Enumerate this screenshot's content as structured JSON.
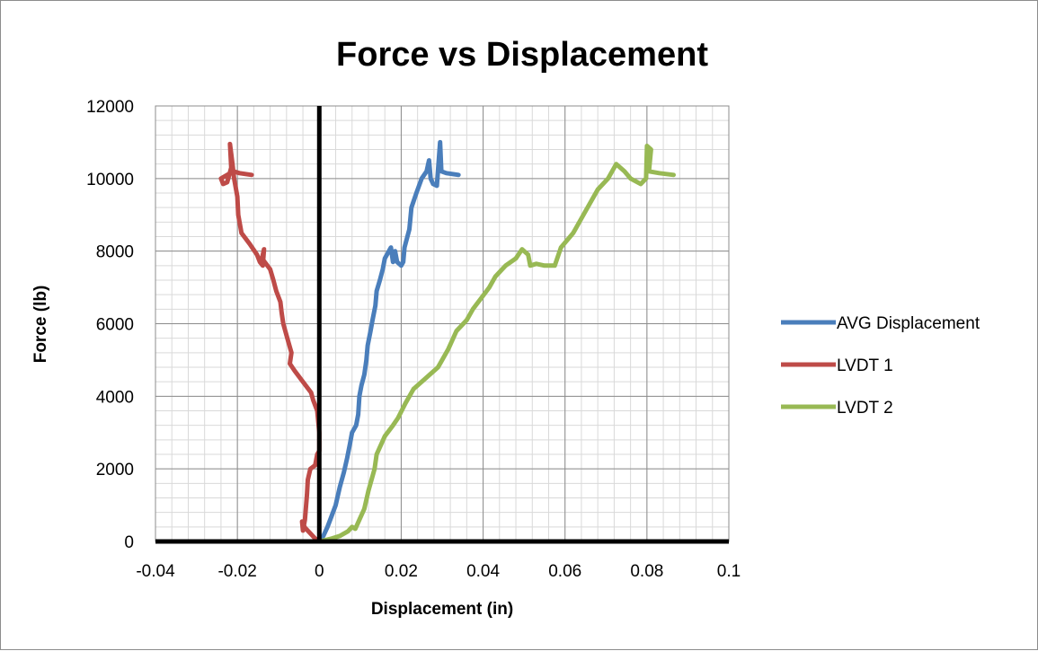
{
  "chart_data": {
    "type": "scatter",
    "title": "Force vs Displacement",
    "xlabel": "Displacement (in)",
    "ylabel": "Force (lb)",
    "xlim": [
      -0.04,
      0.1
    ],
    "ylim": [
      0,
      12000
    ],
    "x_major_ticks": [
      -0.04,
      -0.02,
      0,
      0.02,
      0.04,
      0.06,
      0.08,
      0.1
    ],
    "x_tick_labels": [
      "-0.04",
      "-0.02",
      "0",
      "0.02",
      "0.04",
      "0.06",
      "0.08",
      "0.1"
    ],
    "y_major_ticks": [
      0,
      2000,
      4000,
      6000,
      8000,
      10000,
      12000
    ],
    "y_tick_labels": [
      "0",
      "2000",
      "4000",
      "6000",
      "8000",
      "10000",
      "12000"
    ],
    "x_minor_step": 0.004,
    "y_minor_step": 400,
    "grid": "major and minor",
    "legend_position": "right",
    "series": [
      {
        "name": "AVG Displacement",
        "color": "#4a7ebb",
        "points": [
          [
            0,
            0
          ],
          [
            0.001,
            150
          ],
          [
            0.002,
            400
          ],
          [
            0.003,
            700
          ],
          [
            0.004,
            1000
          ],
          [
            0.005,
            1500
          ],
          [
            0.006,
            1900
          ],
          [
            0.0068,
            2300
          ],
          [
            0.0075,
            2700
          ],
          [
            0.008,
            3000
          ],
          [
            0.009,
            3200
          ],
          [
            0.0095,
            3500
          ],
          [
            0.0098,
            4000
          ],
          [
            0.0103,
            4300
          ],
          [
            0.011,
            4600
          ],
          [
            0.0115,
            5000
          ],
          [
            0.0118,
            5400
          ],
          [
            0.0125,
            5800
          ],
          [
            0.013,
            6100
          ],
          [
            0.0137,
            6500
          ],
          [
            0.014,
            6900
          ],
          [
            0.0148,
            7200
          ],
          [
            0.0155,
            7500
          ],
          [
            0.016,
            7800
          ],
          [
            0.0175,
            8100
          ],
          [
            0.018,
            7700
          ],
          [
            0.0185,
            8000
          ],
          [
            0.019,
            7700
          ],
          [
            0.02,
            7600
          ],
          [
            0.0205,
            7700
          ],
          [
            0.0208,
            8100
          ],
          [
            0.022,
            8600
          ],
          [
            0.0225,
            9200
          ],
          [
            0.0237,
            9600
          ],
          [
            0.025,
            10000
          ],
          [
            0.0262,
            10200
          ],
          [
            0.0268,
            10500
          ],
          [
            0.0272,
            10000
          ],
          [
            0.0278,
            9850
          ],
          [
            0.0287,
            9800
          ],
          [
            0.0295,
            11000
          ],
          [
            0.0298,
            10200
          ],
          [
            0.031,
            10150
          ],
          [
            0.034,
            10100
          ]
        ]
      },
      {
        "name": "LVDT 1",
        "color": "#be4b48",
        "points": [
          [
            0,
            0
          ],
          [
            -0.001,
            80
          ],
          [
            -0.002,
            200
          ],
          [
            -0.0035,
            380
          ],
          [
            -0.0042,
            550
          ],
          [
            -0.004,
            300
          ],
          [
            -0.0035,
            600
          ],
          [
            -0.003,
            1300
          ],
          [
            -0.0028,
            1700
          ],
          [
            -0.0022,
            2000
          ],
          [
            -0.001,
            2100
          ],
          [
            -0.0005,
            2400
          ],
          [
            0,
            2500
          ],
          [
            0,
            3000
          ],
          [
            -0.0005,
            3600
          ],
          [
            -0.0015,
            3900
          ],
          [
            -0.002,
            4100
          ],
          [
            -0.004,
            4400
          ],
          [
            -0.006,
            4700
          ],
          [
            -0.0072,
            4900
          ],
          [
            -0.0068,
            5200
          ],
          [
            -0.0078,
            5600
          ],
          [
            -0.0088,
            6000
          ],
          [
            -0.0092,
            6300
          ],
          [
            -0.0095,
            6600
          ],
          [
            -0.0105,
            6900
          ],
          [
            -0.0112,
            7200
          ],
          [
            -0.012,
            7500
          ],
          [
            -0.014,
            7800
          ],
          [
            -0.0135,
            8050
          ],
          [
            -0.0138,
            7600
          ],
          [
            -0.0145,
            7700
          ],
          [
            -0.0152,
            7900
          ],
          [
            -0.017,
            8200
          ],
          [
            -0.019,
            8500
          ],
          [
            -0.0198,
            9000
          ],
          [
            -0.02,
            9500
          ],
          [
            -0.0208,
            10000
          ],
          [
            -0.0212,
            10400
          ],
          [
            -0.0218,
            10950
          ],
          [
            -0.0215,
            10300
          ],
          [
            -0.0225,
            9900
          ],
          [
            -0.0235,
            9850
          ],
          [
            -0.024,
            10000
          ],
          [
            -0.021,
            10200
          ],
          [
            -0.0195,
            10150
          ],
          [
            -0.0165,
            10100
          ]
        ]
      },
      {
        "name": "LVDT 2",
        "color": "#98b954",
        "points": [
          [
            0,
            0
          ],
          [
            0.003,
            80
          ],
          [
            0.005,
            150
          ],
          [
            0.007,
            280
          ],
          [
            0.008,
            400
          ],
          [
            0.0088,
            350
          ],
          [
            0.0098,
            600
          ],
          [
            0.011,
            900
          ],
          [
            0.012,
            1400
          ],
          [
            0.0135,
            2000
          ],
          [
            0.014,
            2400
          ],
          [
            0.016,
            2900
          ],
          [
            0.018,
            3200
          ],
          [
            0.0192,
            3400
          ],
          [
            0.021,
            3800
          ],
          [
            0.023,
            4200
          ],
          [
            0.026,
            4500
          ],
          [
            0.029,
            4800
          ],
          [
            0.03,
            5000
          ],
          [
            0.0315,
            5300
          ],
          [
            0.0335,
            5800
          ],
          [
            0.036,
            6100
          ],
          [
            0.0375,
            6400
          ],
          [
            0.0395,
            6700
          ],
          [
            0.0415,
            7000
          ],
          [
            0.043,
            7300
          ],
          [
            0.0455,
            7600
          ],
          [
            0.048,
            7800
          ],
          [
            0.0495,
            8050
          ],
          [
            0.051,
            7900
          ],
          [
            0.0515,
            7600
          ],
          [
            0.053,
            7650
          ],
          [
            0.055,
            7600
          ],
          [
            0.0575,
            7600
          ],
          [
            0.059,
            8100
          ],
          [
            0.062,
            8500
          ],
          [
            0.065,
            9100
          ],
          [
            0.068,
            9700
          ],
          [
            0.0705,
            10000
          ],
          [
            0.0725,
            10400
          ],
          [
            0.0745,
            10200
          ],
          [
            0.076,
            10000
          ],
          [
            0.0785,
            9850
          ],
          [
            0.0798,
            10000
          ],
          [
            0.08,
            10900
          ],
          [
            0.081,
            10800
          ],
          [
            0.0805,
            10200
          ],
          [
            0.083,
            10150
          ],
          [
            0.0865,
            10100
          ]
        ]
      }
    ]
  }
}
